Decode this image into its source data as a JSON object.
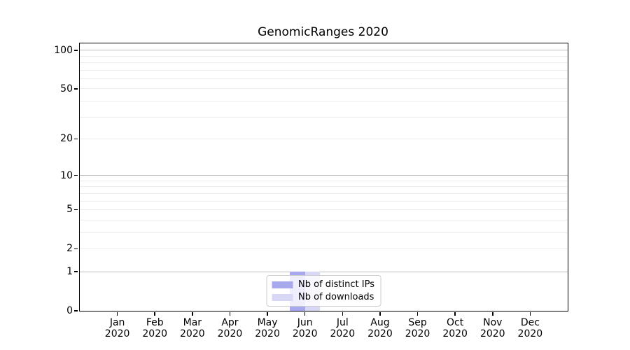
{
  "chart_data": {
    "type": "bar",
    "title": "GenomicRanges 2020",
    "x_axis": {
      "months": [
        "Jan",
        "Feb",
        "Mar",
        "Apr",
        "May",
        "Jun",
        "Jul",
        "Aug",
        "Sep",
        "Oct",
        "Nov",
        "Dec"
      ],
      "year": "2020"
    },
    "y_axis": {
      "scale": "log1p",
      "ticks": [
        0,
        1,
        2,
        5,
        10,
        20,
        50,
        100
      ],
      "decade_ticks": [
        1,
        10,
        100
      ],
      "minor_ticks": [
        3,
        4,
        6,
        7,
        8,
        9,
        30,
        40,
        60,
        70,
        80,
        90
      ],
      "ymax": 113
    },
    "series": [
      {
        "name": "Nb of distinct IPs",
        "color": "#a8a8ee",
        "values": [
          0,
          0,
          0,
          0,
          0,
          1,
          0,
          0,
          0,
          0,
          0,
          0
        ]
      },
      {
        "name": "Nb of downloads",
        "color": "#d8d8f6",
        "values": [
          0,
          0,
          0,
          0,
          0,
          1,
          0,
          0,
          0,
          0,
          0,
          0
        ]
      }
    ],
    "legend_position": "lower center",
    "grid": true
  },
  "colors": {
    "decade_gridline": "#bdbdbd",
    "minor_gridline": "#ededed",
    "spine": "#000000",
    "background": "#ffffff"
  }
}
